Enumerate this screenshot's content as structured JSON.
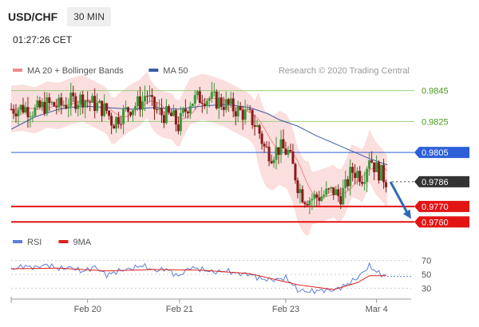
{
  "header": {
    "symbol": "USD/CHF",
    "timeframe": "30 MIN",
    "time": "01:27:26 CET"
  },
  "legend": {
    "items": [
      {
        "label": "MA 20 + Bollinger Bands",
        "color": "#f08a8a"
      },
      {
        "label": "MA 50",
        "color": "#3a5ca8"
      }
    ],
    "credit": "Research © 2020 Trading Central"
  },
  "rsi_legend": {
    "items": [
      {
        "label": "RSI",
        "color": "#5b7fd6"
      },
      {
        "label": "9MA",
        "color": "#e02020"
      }
    ]
  },
  "colors": {
    "up_candle": "#3a9a3a",
    "down_candle": "#8a1a1a",
    "resistance_line": "#9ccf7a",
    "resistance_label": "#4a9a1a",
    "pivot": "#2d5fd8",
    "last_price_bg": "#333333",
    "support": "#e31414",
    "arrow": "#2d6bb3",
    "band_fill": "#f9d3d3"
  },
  "chart_data": [
    {
      "type": "candlestick",
      "y_axis_side": "right",
      "ylim": [
        0.9755,
        0.9852
      ],
      "x_tick_labels": [
        "Feb 20",
        "Feb 21",
        "Feb 23",
        "Mar 4"
      ],
      "levels": [
        {
          "value": 0.9845,
          "label": "0.9845",
          "kind": "resistance"
        },
        {
          "value": 0.9825,
          "label": "0.9825",
          "kind": "resistance"
        },
        {
          "value": 0.9805,
          "label": "0.9805",
          "kind": "pivot"
        },
        {
          "value": 0.9786,
          "label": "0.9786",
          "kind": "last"
        },
        {
          "value": 0.977,
          "label": "0.9770",
          "kind": "support"
        },
        {
          "value": 0.976,
          "label": "0.9760",
          "kind": "support"
        }
      ],
      "close_path": [
        [
          0,
          0.9833
        ],
        [
          10,
          0.9834
        ],
        [
          20,
          0.9832
        ],
        [
          30,
          0.9836
        ],
        [
          40,
          0.9835
        ],
        [
          50,
          0.9838
        ],
        [
          60,
          0.984
        ],
        [
          70,
          0.9836
        ],
        [
          80,
          0.9832
        ],
        [
          85,
          0.9824
        ],
        [
          90,
          0.9828
        ],
        [
          100,
          0.9834
        ],
        [
          110,
          0.9838
        ],
        [
          113,
          0.9844
        ],
        [
          118,
          0.9835
        ],
        [
          125,
          0.983
        ],
        [
          135,
          0.9828
        ],
        [
          140,
          0.9822
        ],
        [
          145,
          0.9831
        ],
        [
          150,
          0.9838
        ],
        [
          160,
          0.9841
        ],
        [
          170,
          0.9839
        ],
        [
          180,
          0.9836
        ],
        [
          190,
          0.9832
        ],
        [
          200,
          0.9828
        ],
        [
          207,
          0.982
        ],
        [
          212,
          0.9808
        ],
        [
          218,
          0.9804
        ],
        [
          225,
          0.9808
        ],
        [
          232,
          0.9805
        ],
        [
          237,
          0.9793
        ],
        [
          240,
          0.9784
        ],
        [
          245,
          0.9776
        ],
        [
          250,
          0.9775
        ],
        [
          260,
          0.9777
        ],
        [
          270,
          0.978
        ],
        [
          275,
          0.9776
        ],
        [
          280,
          0.9782
        ],
        [
          285,
          0.9793
        ],
        [
          290,
          0.9792
        ],
        [
          295,
          0.9789
        ],
        [
          300,
          0.9803
        ],
        [
          305,
          0.9795
        ],
        [
          310,
          0.9791
        ],
        [
          315,
          0.9786
        ]
      ],
      "ma50_path": [
        [
          0,
          0.982
        ],
        [
          20,
          0.9828
        ],
        [
          40,
          0.9833
        ],
        [
          60,
          0.9835
        ],
        [
          80,
          0.9834
        ],
        [
          100,
          0.9833
        ],
        [
          120,
          0.9834
        ],
        [
          140,
          0.9833
        ],
        [
          160,
          0.9835
        ],
        [
          180,
          0.9836
        ],
        [
          200,
          0.9834
        ],
        [
          215,
          0.983
        ],
        [
          225,
          0.9826
        ],
        [
          240,
          0.9822
        ],
        [
          255,
          0.9816
        ],
        [
          270,
          0.9811
        ],
        [
          285,
          0.9806
        ],
        [
          300,
          0.9801
        ],
        [
          315,
          0.9797
        ]
      ],
      "forecast_arrow": {
        "from": [
          0.9786,
          315
        ],
        "to": [
          0.9762,
          335
        ]
      }
    },
    {
      "type": "line",
      "name": "RSI",
      "ylim": [
        20,
        80
      ],
      "y_ticks": [
        70,
        50,
        30
      ],
      "series": [
        {
          "name": "RSI",
          "values_path": [
            [
              0,
              57
            ],
            [
              10,
              62
            ],
            [
              20,
              60
            ],
            [
              30,
              64
            ],
            [
              40,
              58
            ],
            [
              50,
              60
            ],
            [
              60,
              54
            ],
            [
              70,
              61
            ],
            [
              80,
              49
            ],
            [
              90,
              55
            ],
            [
              100,
              58
            ],
            [
              110,
              63
            ],
            [
              120,
              55
            ],
            [
              130,
              58
            ],
            [
              140,
              47
            ],
            [
              150,
              60
            ],
            [
              160,
              57
            ],
            [
              170,
              53
            ],
            [
              180,
              55
            ],
            [
              190,
              51
            ],
            [
              200,
              50
            ],
            [
              210,
              43
            ],
            [
              220,
              42
            ],
            [
              230,
              45
            ],
            [
              235,
              37
            ],
            [
              240,
              27
            ],
            [
              245,
              26
            ],
            [
              250,
              25
            ],
            [
              260,
              27
            ],
            [
              270,
              27
            ],
            [
              280,
              34
            ],
            [
              290,
              45
            ],
            [
              300,
              62
            ],
            [
              305,
              55
            ],
            [
              310,
              50
            ],
            [
              315,
              47
            ]
          ]
        },
        {
          "name": "9MA",
          "values_path": [
            [
              0,
              58
            ],
            [
              40,
              59
            ],
            [
              80,
              55
            ],
            [
              120,
              57
            ],
            [
              160,
              56
            ],
            [
              200,
              51
            ],
            [
              240,
              35
            ],
            [
              270,
              28
            ],
            [
              290,
              38
            ],
            [
              300,
              48
            ],
            [
              315,
              48
            ]
          ]
        }
      ]
    }
  ]
}
